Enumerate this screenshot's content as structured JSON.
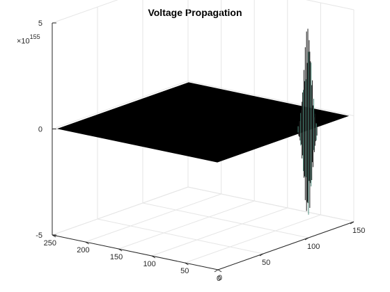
{
  "title": "Voltage Propagation",
  "chart_data": {
    "type": "surface",
    "title": "Voltage Propagation",
    "xlabel": "",
    "ylabel": "",
    "zlabel": "",
    "z_exponent_base": "×10",
    "z_exponent_power": "155",
    "x_axis": {
      "lim": [
        0,
        250
      ],
      "ticks": [
        0,
        50,
        100,
        150,
        200,
        250
      ]
    },
    "y_axis": {
      "lim": [
        0,
        150
      ],
      "ticks": [
        0,
        50,
        100,
        150
      ]
    },
    "z_axis": {
      "lim": [
        -5,
        5
      ],
      "ticks": [
        -5,
        0,
        5
      ]
    },
    "grid": true,
    "surface": {
      "baseline": 0,
      "spike_x": 1,
      "spike_y": 100,
      "spike_peak": 5,
      "spike_trough": -4.1
    },
    "colors": {
      "surface": "#000000",
      "spike_highlight": "#4a8a7a",
      "grid": "#e5e5e5",
      "axis": "#262626"
    }
  }
}
